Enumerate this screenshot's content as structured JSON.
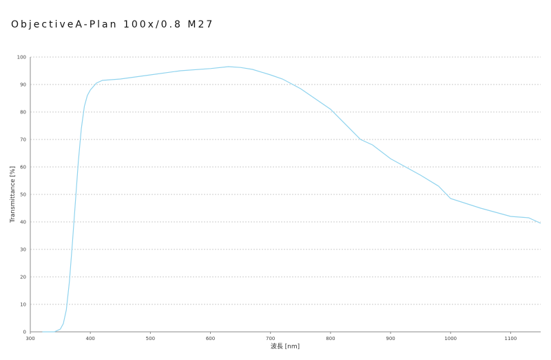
{
  "chart_data": {
    "type": "line",
    "title": "ObjectiveA-Plan 100x/0.8 M27",
    "x_label": "波長 [nm]",
    "y_label": "Transmittance [%]",
    "xlim": [
      300,
      1150
    ],
    "ylim": [
      0,
      100
    ],
    "xticks": [
      300,
      400,
      500,
      600,
      700,
      800,
      900,
      1000,
      1100
    ],
    "yticks": [
      0,
      10,
      20,
      30,
      40,
      50,
      60,
      70,
      80,
      90,
      100
    ],
    "grid": true,
    "series": [
      {
        "name": "Transmittance",
        "color": "#8fd3ee",
        "x": [
          320,
          340,
          350,
          355,
          360,
          365,
          370,
          375,
          380,
          385,
          390,
          395,
          400,
          410,
          420,
          450,
          500,
          550,
          600,
          630,
          650,
          670,
          700,
          720,
          750,
          800,
          850,
          870,
          900,
          950,
          980,
          1000,
          1050,
          1100,
          1130,
          1150
        ],
        "values": [
          0,
          0,
          1,
          3,
          8,
          18,
          32,
          47,
          62,
          74,
          82,
          86,
          88,
          90.5,
          91.5,
          92,
          93.5,
          95,
          95.8,
          96.5,
          96.2,
          95.5,
          93.5,
          92,
          88.5,
          81,
          70,
          68,
          63,
          57,
          53,
          48.5,
          45,
          42,
          41.5,
          39.5
        ]
      }
    ]
  }
}
